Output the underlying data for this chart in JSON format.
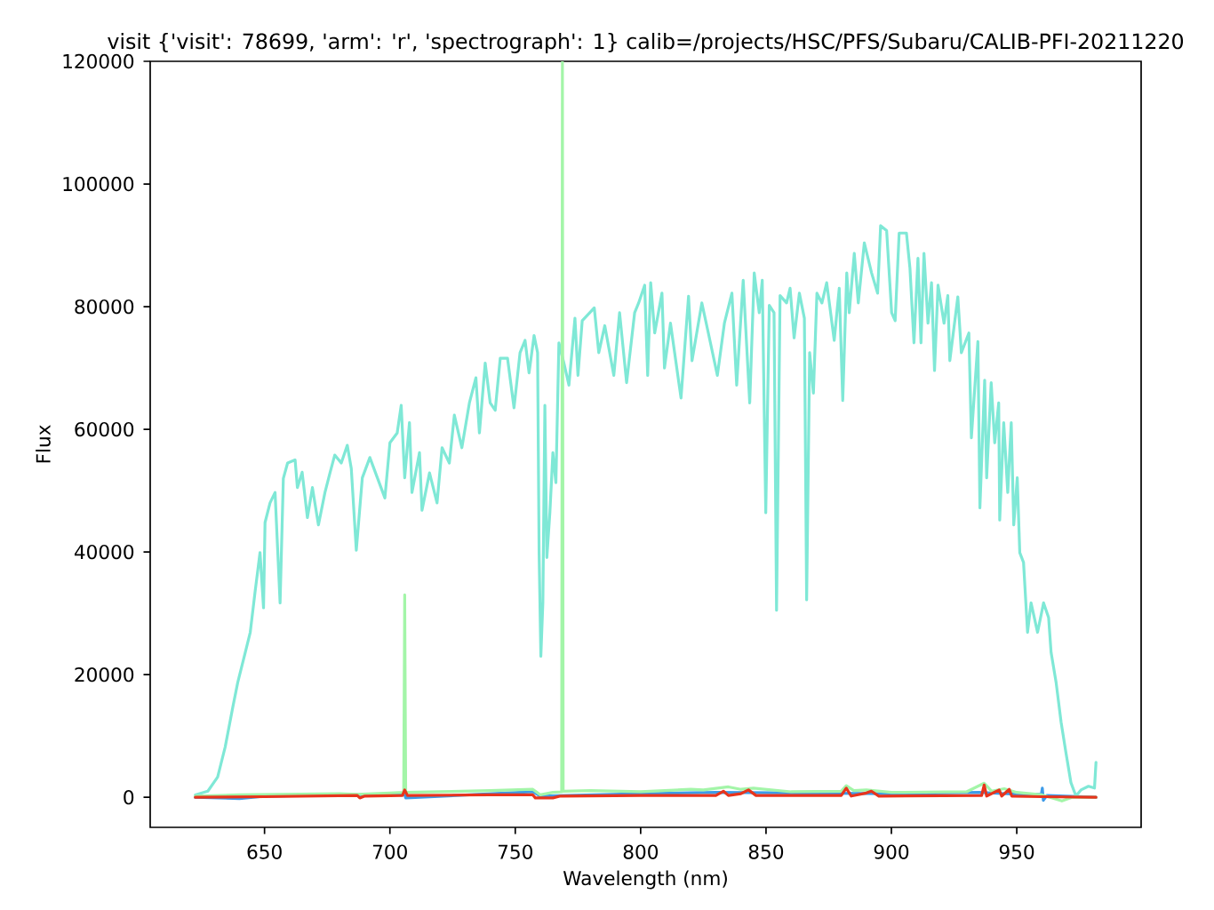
{
  "chart_data": {
    "type": "line",
    "title": "visit {'visit': 78699, 'arm': 'r', 'spectrograph': 1} calib=/projects/HSC/PFS/Subaru/CALIB-PFI-20211220",
    "xlabel": "Wavelength (nm)",
    "ylabel": "Flux",
    "xlim": [
      604.4,
      999.6
    ],
    "ylim": [
      -4900,
      120000
    ],
    "xticks": [
      650,
      700,
      750,
      800,
      850,
      900,
      950
    ],
    "yticks": [
      0,
      20000,
      40000,
      60000,
      80000,
      100000,
      120000
    ],
    "series": [
      {
        "color": "#3d9be8",
        "x": [
          622.4,
          640,
          650,
          700,
          705.9,
          706.3,
          757,
          760,
          800,
          830,
          900,
          935,
          950,
          959.8,
          960.2,
          960.6,
          962,
          981.6
        ],
        "values": [
          0,
          -200,
          200,
          500,
          500,
          -100,
          900,
          200,
          600,
          800,
          600,
          800,
          500,
          500,
          1500,
          -500,
          300,
          0
        ]
      },
      {
        "color": "#7fe8d6",
        "x": [
          622.4,
          627.4,
          631.3,
          634.3,
          637.3,
          639.3,
          642.3,
          644.3,
          646.2,
          648.2,
          649.6,
          650.2,
          652.2,
          654.2,
          656.2,
          657.5,
          659.2,
          662.2,
          663.1,
          665.0,
          667.1,
          669.1,
          671.5,
          674.1,
          676.1,
          678.0,
          680.6,
          683.0,
          684.6,
          686.6,
          689.0,
          692.0,
          695.0,
          698.0,
          700.0,
          702.9,
          704.5,
          705.9,
          707.8,
          708.8,
          711.8,
          712.8,
          715.8,
          718.8,
          720.8,
          723.7,
          725.7,
          728.7,
          731.7,
          734.3,
          735.7,
          738.0,
          740.0,
          742.0,
          744.0,
          746.9,
          749.5,
          751.9,
          753.9,
          755.5,
          757.5,
          758.9,
          759.5,
          760.2,
          761.0,
          761.8,
          762.6,
          763.8,
          765.0,
          766.2,
          767.4,
          769.4,
          771.4,
          773.8,
          775.0,
          776.7,
          779.7,
          781.5,
          783.3,
          785.7,
          789.3,
          791.6,
          794.4,
          797.6,
          799.2,
          801.6,
          802.8,
          804.0,
          805.6,
          808.5,
          809.5,
          811.9,
          816.1,
          819.1,
          820.5,
          824.4,
          827.0,
          830.6,
          833.4,
          836.4,
          838.3,
          840.9,
          843.5,
          845.3,
          847.3,
          848.5,
          849.9,
          851.3,
          853.2,
          854.2,
          855.6,
          858.2,
          859.6,
          861.2,
          863.3,
          865.3,
          866.2,
          867.4,
          868.9,
          870.3,
          872.3,
          874.2,
          877.2,
          879.2,
          880.6,
          882.2,
          883.2,
          885.2,
          886.8,
          889.2,
          892.1,
          894.5,
          895.7,
          898.1,
          900.1,
          901.5,
          903.1,
          906.0,
          907.4,
          909.0,
          910.6,
          911.8,
          913.0,
          914.6,
          916.0,
          917.2,
          918.6,
          921.0,
          922.5,
          923.3,
          926.5,
          927.9,
          930.9,
          931.9,
          934.5,
          935.3,
          937.2,
          938.0,
          939.8,
          941.2,
          942.8,
          943.2,
          944.8,
          946.4,
          947.8,
          948.8,
          950.2,
          951.2,
          952.7,
          954.3,
          955.7,
          958.3,
          960.7,
          962.7,
          963.7,
          965.7,
          967.7,
          969.6,
          971.6,
          973.6,
          975.6,
          978.6,
          981.0,
          981.6
        ],
        "values": [
          400,
          1000,
          3300,
          8200,
          14600,
          18700,
          23600,
          26900,
          33400,
          39900,
          30900,
          44800,
          48000,
          49700,
          31700,
          52000,
          54500,
          55000,
          50500,
          53000,
          45600,
          50500,
          44400,
          49700,
          52900,
          55800,
          54500,
          57400,
          53600,
          40300,
          52100,
          55400,
          52100,
          48800,
          57800,
          59400,
          63900,
          52100,
          61100,
          49700,
          56200,
          46800,
          52900,
          48000,
          57000,
          54500,
          62300,
          57000,
          64300,
          68400,
          59400,
          70800,
          64300,
          63100,
          71600,
          71600,
          63500,
          72500,
          74500,
          69200,
          75300,
          72500,
          39900,
          23000,
          31700,
          63900,
          39100,
          46400,
          56200,
          51300,
          74100,
          70800,
          67200,
          78100,
          68800,
          77700,
          79000,
          79800,
          72500,
          76900,
          68800,
          79000,
          67600,
          79000,
          80600,
          83500,
          68800,
          83900,
          75700,
          82200,
          70000,
          77300,
          65100,
          81700,
          71200,
          80600,
          75700,
          68800,
          77300,
          82200,
          67200,
          84300,
          64300,
          85500,
          79000,
          84300,
          46400,
          80200,
          79000,
          30500,
          81800,
          80600,
          83000,
          74900,
          82200,
          78100,
          32200,
          72500,
          65900,
          82200,
          80600,
          83900,
          74500,
          83000,
          64700,
          85500,
          79000,
          88700,
          80600,
          90400,
          85500,
          82200,
          93200,
          92400,
          79000,
          77700,
          92000,
          92000,
          86300,
          74100,
          87900,
          74100,
          88700,
          77300,
          83900,
          69600,
          83500,
          77300,
          81800,
          71200,
          81600,
          72500,
          75700,
          58600,
          74300,
          47200,
          68000,
          52100,
          67600,
          57800,
          64300,
          45200,
          61100,
          49700,
          61100,
          44400,
          52100,
          39900,
          38300,
          26900,
          31700,
          26900,
          31700,
          29300,
          23600,
          18700,
          12200,
          7300,
          2400,
          200,
          1200,
          1800,
          1500,
          5700
        ]
      },
      {
        "color": "#a3f5a8",
        "x": [
          622.4,
          640,
          680,
          687,
          700,
          705.5,
          705.9,
          706.3,
          720,
          740,
          757,
          759,
          760,
          765,
          768.5,
          768.8,
          769.1,
          780,
          800,
          820,
          825,
          835,
          840,
          845,
          860,
          880,
          882,
          885,
          890,
          900,
          930,
          937,
          940,
          945,
          950,
          960,
          968,
          972,
          981.6
        ],
        "values": [
          200,
          400,
          600,
          500,
          700,
          800,
          33000,
          800,
          900,
          1100,
          1300,
          700,
          400,
          800,
          900,
          120000,
          1000,
          1100,
          900,
          1300,
          1200,
          1700,
          1300,
          1500,
          900,
          1000,
          1900,
          1100,
          1200,
          800,
          900,
          2300,
          1000,
          1400,
          800,
          400,
          -600,
          0,
          0
        ]
      },
      {
        "color": "#e8341c",
        "x": [
          622.4,
          650,
          687,
          688,
          690,
          705,
          705.9,
          707,
          740,
          757,
          758,
          765,
          768,
          800,
          830,
          833,
          835,
          840,
          843,
          846,
          880,
          882,
          884,
          890,
          892,
          895,
          936,
          937,
          938,
          943,
          944,
          947,
          948,
          960,
          981.6
        ],
        "values": [
          0,
          100,
          300,
          -100,
          200,
          300,
          1200,
          300,
          400,
          400,
          -100,
          -100,
          200,
          300,
          300,
          1000,
          300,
          600,
          1200,
          300,
          300,
          1500,
          200,
          700,
          1000,
          200,
          300,
          2000,
          200,
          1200,
          200,
          1300,
          200,
          100,
          0
        ]
      }
    ]
  }
}
